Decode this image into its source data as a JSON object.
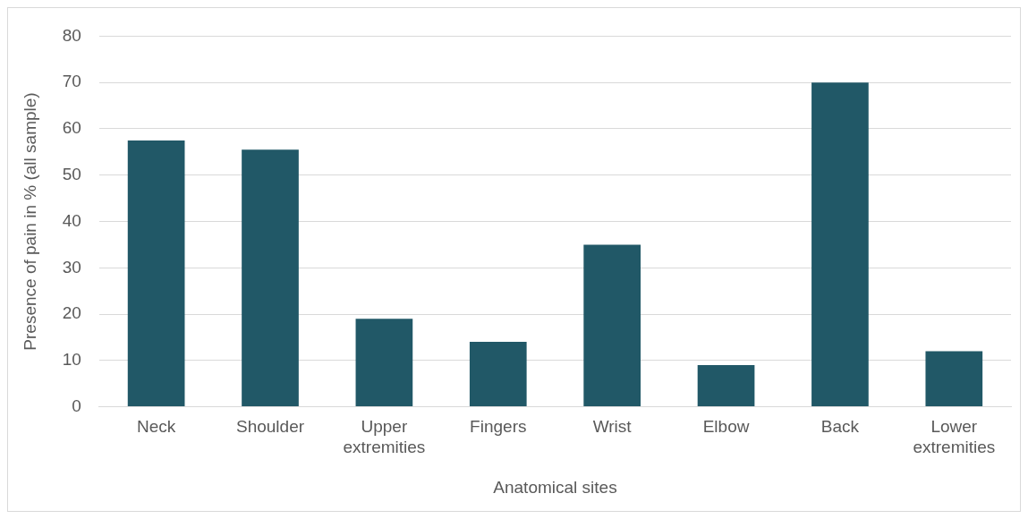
{
  "chart_data": {
    "type": "bar",
    "xlabel": "Anatomical sites",
    "ylabel": "Presence of pain in % (all sample)",
    "categories": [
      "Neck",
      "Shoulder",
      "Upper extremities",
      "Fingers",
      "Wrist",
      "Elbow",
      "Back",
      "Lower extremities"
    ],
    "values": [
      57.5,
      55.5,
      19,
      14,
      35,
      9,
      70,
      12
    ],
    "color": "#215867",
    "ylim": [
      0,
      80
    ],
    "yticks": [
      0,
      10,
      20,
      30,
      40,
      50,
      60,
      70,
      80
    ],
    "grid": "y",
    "legend": false
  }
}
